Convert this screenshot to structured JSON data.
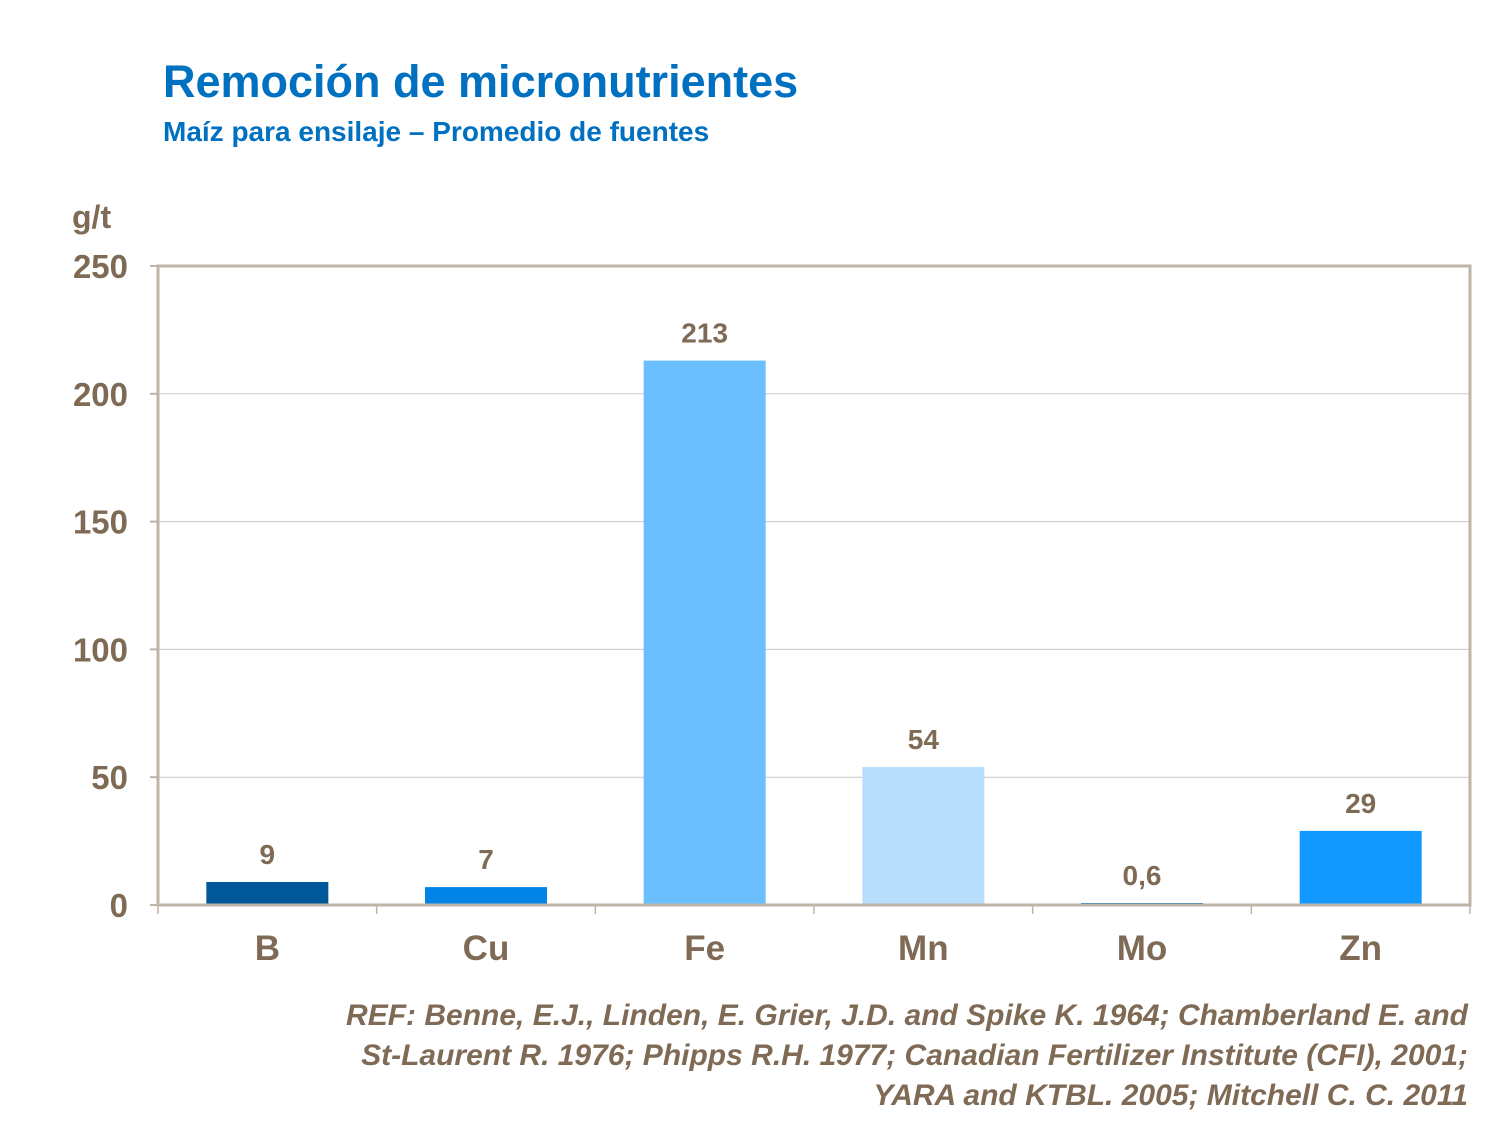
{
  "chart_data": {
    "type": "bar",
    "title": "Remoción de micronutrientes",
    "subtitle": "Maíz para ensilaje – Promedio de fuentes",
    "ylabel": "g/t",
    "xlabel": "",
    "categories": [
      "B",
      "Cu",
      "Fe",
      "Mn",
      "Mo",
      "Zn"
    ],
    "values": [
      9,
      7,
      213,
      54,
      0.6,
      29
    ],
    "data_labels": [
      "9",
      "7",
      "213",
      "54",
      "0,6",
      "29"
    ],
    "bar_colors": [
      "#00579a",
      "#0085e6",
      "#6bbfff",
      "#b8defd",
      "#0070c0",
      "#1199ff"
    ],
    "ylim": [
      0,
      250
    ],
    "yticks": [
      0,
      50,
      100,
      150,
      200,
      250
    ],
    "grid": true,
    "legend": "none"
  },
  "reference": [
    "REF: Benne, E.J., Linden, E. Grier, J.D. and Spike K. 1964; Chamberland  E. and",
    "St-Laurent  R. 1976; Phipps R.H. 1977; Canadian Fertilizer Institute (CFI), 2001;",
    "YARA and KTBL. 2005; Mitchell C. C. 2011"
  ],
  "colors": {
    "title": "#0070c0",
    "text": "#7f6b55",
    "axis": "#bfb4a8",
    "grid": "#c8c8c8"
  }
}
